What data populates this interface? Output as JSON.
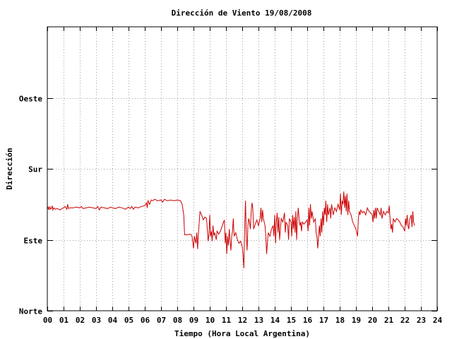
{
  "chart_data": {
    "type": "line",
    "title": "Dirección de Viento 19/08/2008",
    "xlabel": "Tiempo (Hora Local Argentina)",
    "ylabel": "Dirección",
    "xlim": [
      0,
      24
    ],
    "ylim": [
      0,
      4
    ],
    "x_ticks": [
      "00",
      "01",
      "02",
      "03",
      "04",
      "05",
      "06",
      "07",
      "08",
      "09",
      "10",
      "11",
      "12",
      "13",
      "14",
      "15",
      "16",
      "17",
      "18",
      "19",
      "20",
      "21",
      "22",
      "23",
      "24"
    ],
    "y_ticks": [
      {
        "value": 0,
        "label": "Norte"
      },
      {
        "value": 1,
        "label": "Este"
      },
      {
        "value": 2,
        "label": "Sur"
      },
      {
        "value": 3,
        "label": "Oeste"
      }
    ],
    "grid": true,
    "line_color": "#cc0000",
    "series": [
      {
        "values": [
          [
            0.0,
            1.43
          ],
          [
            0.05,
            1.46
          ],
          [
            0.1,
            1.42
          ],
          [
            0.15,
            1.47
          ],
          [
            0.2,
            1.43
          ],
          [
            0.25,
            1.44
          ],
          [
            0.3,
            1.48
          ],
          [
            0.35,
            1.42
          ],
          [
            0.4,
            1.45
          ],
          [
            0.5,
            1.43
          ],
          [
            0.6,
            1.44
          ],
          [
            0.7,
            1.43
          ],
          [
            0.8,
            1.42
          ],
          [
            0.9,
            1.44
          ],
          [
            1.0,
            1.45
          ],
          [
            1.1,
            1.47
          ],
          [
            1.2,
            1.43
          ],
          [
            1.25,
            1.5
          ],
          [
            1.3,
            1.44
          ],
          [
            1.4,
            1.45
          ],
          [
            1.6,
            1.45
          ],
          [
            1.8,
            1.46
          ],
          [
            2.0,
            1.45
          ],
          [
            2.1,
            1.47
          ],
          [
            2.2,
            1.44
          ],
          [
            2.4,
            1.45
          ],
          [
            2.6,
            1.46
          ],
          [
            2.8,
            1.45
          ],
          [
            3.0,
            1.44
          ],
          [
            3.1,
            1.47
          ],
          [
            3.2,
            1.42
          ],
          [
            3.3,
            1.46
          ],
          [
            3.5,
            1.45
          ],
          [
            3.7,
            1.44
          ],
          [
            3.9,
            1.46
          ],
          [
            4.0,
            1.45
          ],
          [
            4.2,
            1.44
          ],
          [
            4.4,
            1.46
          ],
          [
            4.6,
            1.45
          ],
          [
            4.8,
            1.43
          ],
          [
            5.0,
            1.46
          ],
          [
            5.1,
            1.44
          ],
          [
            5.2,
            1.47
          ],
          [
            5.3,
            1.43
          ],
          [
            5.4,
            1.46
          ],
          [
            5.6,
            1.45
          ],
          [
            5.8,
            1.47
          ],
          [
            6.0,
            1.48
          ],
          [
            6.1,
            1.52
          ],
          [
            6.15,
            1.45
          ],
          [
            6.2,
            1.55
          ],
          [
            6.3,
            1.5
          ],
          [
            6.4,
            1.56
          ],
          [
            6.5,
            1.55
          ],
          [
            6.6,
            1.57
          ],
          [
            6.8,
            1.55
          ],
          [
            7.0,
            1.56
          ],
          [
            7.1,
            1.53
          ],
          [
            7.2,
            1.57
          ],
          [
            7.4,
            1.55
          ],
          [
            7.6,
            1.56
          ],
          [
            7.8,
            1.55
          ],
          [
            8.0,
            1.56
          ],
          [
            8.2,
            1.55
          ],
          [
            8.3,
            1.5
          ],
          [
            8.4,
            1.35
          ],
          [
            8.45,
            1.07
          ],
          [
            8.6,
            1.07
          ],
          [
            8.8,
            1.08
          ],
          [
            8.9,
            1.06
          ],
          [
            8.95,
            0.98
          ],
          [
            9.0,
            0.88
          ],
          [
            9.05,
            1.05
          ],
          [
            9.15,
            0.95
          ],
          [
            9.2,
            1.1
          ],
          [
            9.25,
            0.87
          ],
          [
            9.3,
            1.08
          ],
          [
            9.4,
            1.4
          ],
          [
            9.5,
            1.35
          ],
          [
            9.6,
            1.28
          ],
          [
            9.7,
            1.32
          ],
          [
            9.8,
            1.3
          ],
          [
            9.85,
            1.15
          ],
          [
            9.9,
            0.98
          ],
          [
            9.95,
            1.08
          ],
          [
            10.0,
            1.35
          ],
          [
            10.05,
            1.05
          ],
          [
            10.1,
            1.12
          ],
          [
            10.15,
            0.98
          ],
          [
            10.2,
            1.2
          ],
          [
            10.25,
            1.06
          ],
          [
            10.3,
            1.1
          ],
          [
            10.4,
            1.0
          ],
          [
            10.45,
            1.12
          ],
          [
            10.55,
            1.08
          ],
          [
            10.65,
            1.12
          ],
          [
            10.7,
            1.15
          ],
          [
            10.8,
            1.22
          ],
          [
            10.9,
            1.28
          ],
          [
            10.95,
            0.95
          ],
          [
            11.0,
            1.1
          ],
          [
            11.05,
            0.8
          ],
          [
            11.1,
            1.05
          ],
          [
            11.15,
            0.92
          ],
          [
            11.2,
            1.15
          ],
          [
            11.25,
            0.98
          ],
          [
            11.3,
            0.85
          ],
          [
            11.35,
            1.05
          ],
          [
            11.4,
            1.12
          ],
          [
            11.45,
            1.3
          ],
          [
            11.5,
            1.05
          ],
          [
            11.6,
            1.1
          ],
          [
            11.7,
            1.0
          ],
          [
            11.8,
            0.95
          ],
          [
            11.9,
            0.98
          ],
          [
            12.0,
            0.9
          ],
          [
            12.05,
            0.78
          ],
          [
            12.1,
            0.6
          ],
          [
            12.15,
            1.15
          ],
          [
            12.2,
            1.55
          ],
          [
            12.25,
            1.05
          ],
          [
            12.3,
            0.85
          ],
          [
            12.35,
            1.2
          ],
          [
            12.4,
            1.3
          ],
          [
            12.45,
            1.25
          ],
          [
            12.5,
            1.15
          ],
          [
            12.55,
            1.4
          ],
          [
            12.6,
            1.52
          ],
          [
            12.65,
            1.45
          ],
          [
            12.7,
            1.15
          ],
          [
            12.8,
            1.22
          ],
          [
            12.9,
            1.28
          ],
          [
            13.0,
            1.2
          ],
          [
            13.1,
            1.3
          ],
          [
            13.15,
            1.45
          ],
          [
            13.2,
            1.25
          ],
          [
            13.25,
            1.42
          ],
          [
            13.3,
            1.3
          ],
          [
            13.4,
            1.2
          ],
          [
            13.45,
            1.05
          ],
          [
            13.5,
            0.8
          ],
          [
            13.55,
            0.95
          ],
          [
            13.6,
            1.1
          ],
          [
            13.7,
            1.05
          ],
          [
            13.8,
            1.15
          ],
          [
            13.9,
            1.2
          ],
          [
            13.95,
            1.05
          ],
          [
            14.0,
            1.35
          ],
          [
            14.05,
            0.95
          ],
          [
            14.1,
            1.25
          ],
          [
            14.15,
            1.38
          ],
          [
            14.2,
            1.1
          ],
          [
            14.25,
            1.32
          ],
          [
            14.3,
            1.0
          ],
          [
            14.4,
            1.3
          ],
          [
            14.5,
            1.25
          ],
          [
            14.6,
            1.38
          ],
          [
            14.65,
            1.1
          ],
          [
            14.7,
            1.25
          ],
          [
            14.8,
            1.2
          ],
          [
            14.85,
            1.0
          ],
          [
            14.9,
            1.3
          ],
          [
            15.0,
            1.25
          ],
          [
            15.05,
            1.05
          ],
          [
            15.1,
            1.35
          ],
          [
            15.15,
            1.15
          ],
          [
            15.2,
            1.32
          ],
          [
            15.25,
            1.1
          ],
          [
            15.3,
            1.4
          ],
          [
            15.35,
            1.0
          ],
          [
            15.4,
            1.3
          ],
          [
            15.45,
            1.45
          ],
          [
            15.5,
            1.3
          ],
          [
            15.55,
            1.2
          ],
          [
            15.6,
            1.25
          ],
          [
            15.65,
            1.12
          ],
          [
            15.7,
            1.25
          ],
          [
            15.8,
            1.22
          ],
          [
            15.9,
            1.25
          ],
          [
            16.0,
            1.28
          ],
          [
            16.05,
            1.12
          ],
          [
            16.1,
            1.45
          ],
          [
            16.15,
            1.2
          ],
          [
            16.2,
            1.5
          ],
          [
            16.25,
            1.3
          ],
          [
            16.3,
            1.4
          ],
          [
            16.4,
            1.25
          ],
          [
            16.5,
            1.3
          ],
          [
            16.55,
            1.1
          ],
          [
            16.6,
            1.05
          ],
          [
            16.65,
            0.88
          ],
          [
            16.7,
            1.05
          ],
          [
            16.75,
            1.2
          ],
          [
            16.8,
            1.05
          ],
          [
            16.85,
            1.3
          ],
          [
            16.9,
            1.1
          ],
          [
            16.95,
            1.4
          ],
          [
            17.0,
            1.2
          ],
          [
            17.05,
            1.45
          ],
          [
            17.1,
            1.35
          ],
          [
            17.15,
            1.55
          ],
          [
            17.2,
            1.25
          ],
          [
            17.25,
            1.5
          ],
          [
            17.3,
            1.35
          ],
          [
            17.4,
            1.45
          ],
          [
            17.45,
            1.3
          ],
          [
            17.5,
            1.5
          ],
          [
            17.6,
            1.35
          ],
          [
            17.7,
            1.45
          ],
          [
            17.8,
            1.4
          ],
          [
            17.9,
            1.5
          ],
          [
            18.0,
            1.42
          ],
          [
            18.05,
            1.65
          ],
          [
            18.1,
            1.35
          ],
          [
            18.15,
            1.55
          ],
          [
            18.2,
            1.5
          ],
          [
            18.25,
            1.68
          ],
          [
            18.3,
            1.45
          ],
          [
            18.35,
            1.62
          ],
          [
            18.4,
            1.4
          ],
          [
            18.45,
            1.65
          ],
          [
            18.5,
            1.35
          ],
          [
            18.55,
            1.55
          ],
          [
            18.6,
            1.4
          ],
          [
            18.7,
            1.35
          ],
          [
            18.8,
            1.25
          ],
          [
            18.9,
            1.2
          ],
          [
            19.0,
            1.15
          ],
          [
            19.1,
            1.05
          ],
          [
            19.15,
            1.3
          ],
          [
            19.2,
            1.4
          ],
          [
            19.25,
            1.35
          ],
          [
            19.3,
            1.42
          ],
          [
            19.4,
            1.38
          ],
          [
            19.5,
            1.4
          ],
          [
            19.6,
            1.35
          ],
          [
            19.7,
            1.45
          ],
          [
            19.8,
            1.4
          ],
          [
            19.9,
            1.38
          ],
          [
            20.0,
            1.35
          ],
          [
            20.05,
            1.25
          ],
          [
            20.1,
            1.42
          ],
          [
            20.15,
            1.3
          ],
          [
            20.2,
            1.45
          ],
          [
            20.25,
            1.3
          ],
          [
            20.3,
            1.45
          ],
          [
            20.4,
            1.4
          ],
          [
            20.5,
            1.35
          ],
          [
            20.55,
            1.45
          ],
          [
            20.6,
            1.3
          ],
          [
            20.7,
            1.4
          ],
          [
            20.8,
            1.35
          ],
          [
            20.9,
            1.4
          ],
          [
            21.0,
            1.38
          ],
          [
            21.05,
            1.48
          ],
          [
            21.1,
            1.3
          ],
          [
            21.15,
            1.15
          ],
          [
            21.2,
            1.22
          ],
          [
            21.25,
            1.1
          ],
          [
            21.3,
            1.3
          ],
          [
            21.4,
            1.25
          ],
          [
            21.5,
            1.3
          ],
          [
            21.6,
            1.28
          ],
          [
            21.7,
            1.25
          ],
          [
            21.8,
            1.2
          ],
          [
            21.9,
            1.18
          ],
          [
            22.0,
            1.12
          ],
          [
            22.05,
            1.3
          ],
          [
            22.1,
            1.2
          ],
          [
            22.15,
            1.35
          ],
          [
            22.2,
            1.2
          ],
          [
            22.25,
            1.15
          ],
          [
            22.3,
            1.28
          ],
          [
            22.4,
            1.35
          ],
          [
            22.45,
            1.18
          ],
          [
            22.5,
            1.4
          ],
          [
            22.55,
            1.25
          ],
          [
            22.6,
            1.2
          ]
        ]
      }
    ]
  }
}
